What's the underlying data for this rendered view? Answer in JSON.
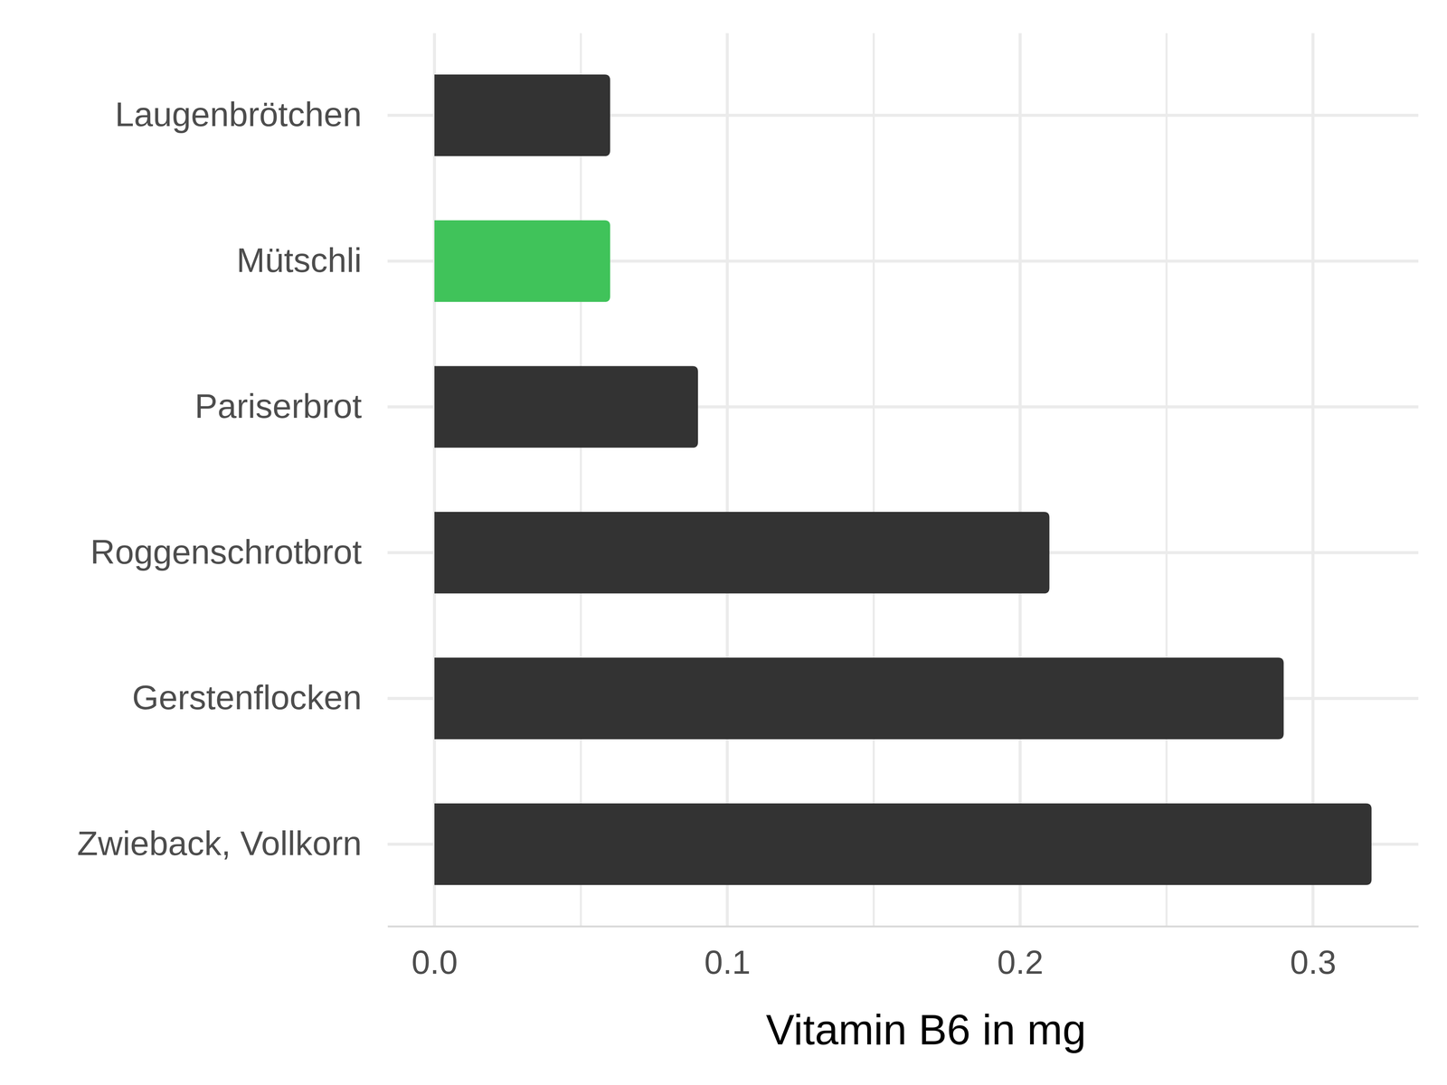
{
  "chart_data": {
    "type": "bar",
    "orientation": "horizontal",
    "categories": [
      "Laugenbrötchen",
      "Mütschli",
      "Pariserbrot",
      "Roggenschrotbrot",
      "Gerstenflocken",
      "Zwieback, Vollkorn"
    ],
    "values": [
      0.06,
      0.06,
      0.09,
      0.21,
      0.29,
      0.32
    ],
    "colors": [
      "#333333",
      "#40c35a",
      "#333333",
      "#333333",
      "#333333",
      "#333333"
    ],
    "x_label": "Vitamin B6 in mg",
    "xlim": [
      -0.016,
      0.336
    ],
    "xticks": [
      {
        "value": 0,
        "label": "0.0"
      },
      0.1,
      0.2,
      0.3
    ],
    "grid": true
  }
}
